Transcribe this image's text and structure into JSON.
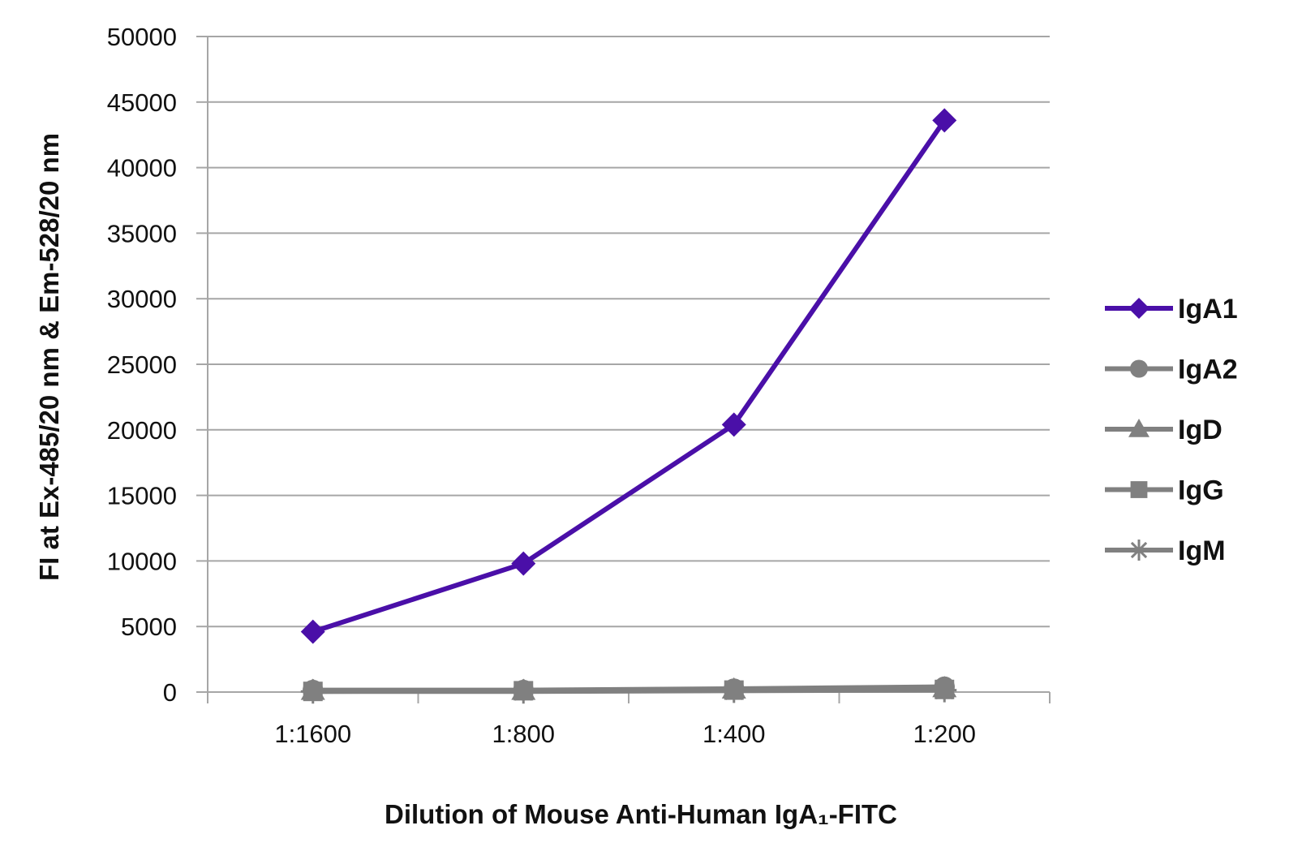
{
  "chart_data": {
    "type": "line",
    "categories": [
      "1:1600",
      "1:800",
      "1:400",
      "1:200"
    ],
    "xlabel": "Dilution of Mouse Anti-Human IgA₁-FITC",
    "ylabel": "FI at Ex-485/20 nm & Em-528/20 nm",
    "ylim": [
      0,
      50000
    ],
    "yticks": [
      0,
      5000,
      10000,
      15000,
      20000,
      25000,
      30000,
      35000,
      40000,
      45000,
      50000
    ],
    "grid": true,
    "legend": "right",
    "series": [
      {
        "name": "IgA1",
        "marker": "diamond",
        "color": "#4a0fa8",
        "values": [
          4600,
          9800,
          20400,
          43600
        ]
      },
      {
        "name": "IgA2",
        "marker": "circle",
        "color": "#808080",
        "values": [
          150,
          150,
          250,
          400
        ]
      },
      {
        "name": "IgD",
        "marker": "triangle",
        "color": "#808080",
        "values": [
          100,
          100,
          200,
          300
        ]
      },
      {
        "name": "IgG",
        "marker": "square",
        "color": "#808080",
        "values": [
          50,
          100,
          150,
          200
        ]
      },
      {
        "name": "IgM",
        "marker": "star",
        "color": "#808080",
        "values": [
          50,
          50,
          100,
          150
        ]
      }
    ]
  }
}
